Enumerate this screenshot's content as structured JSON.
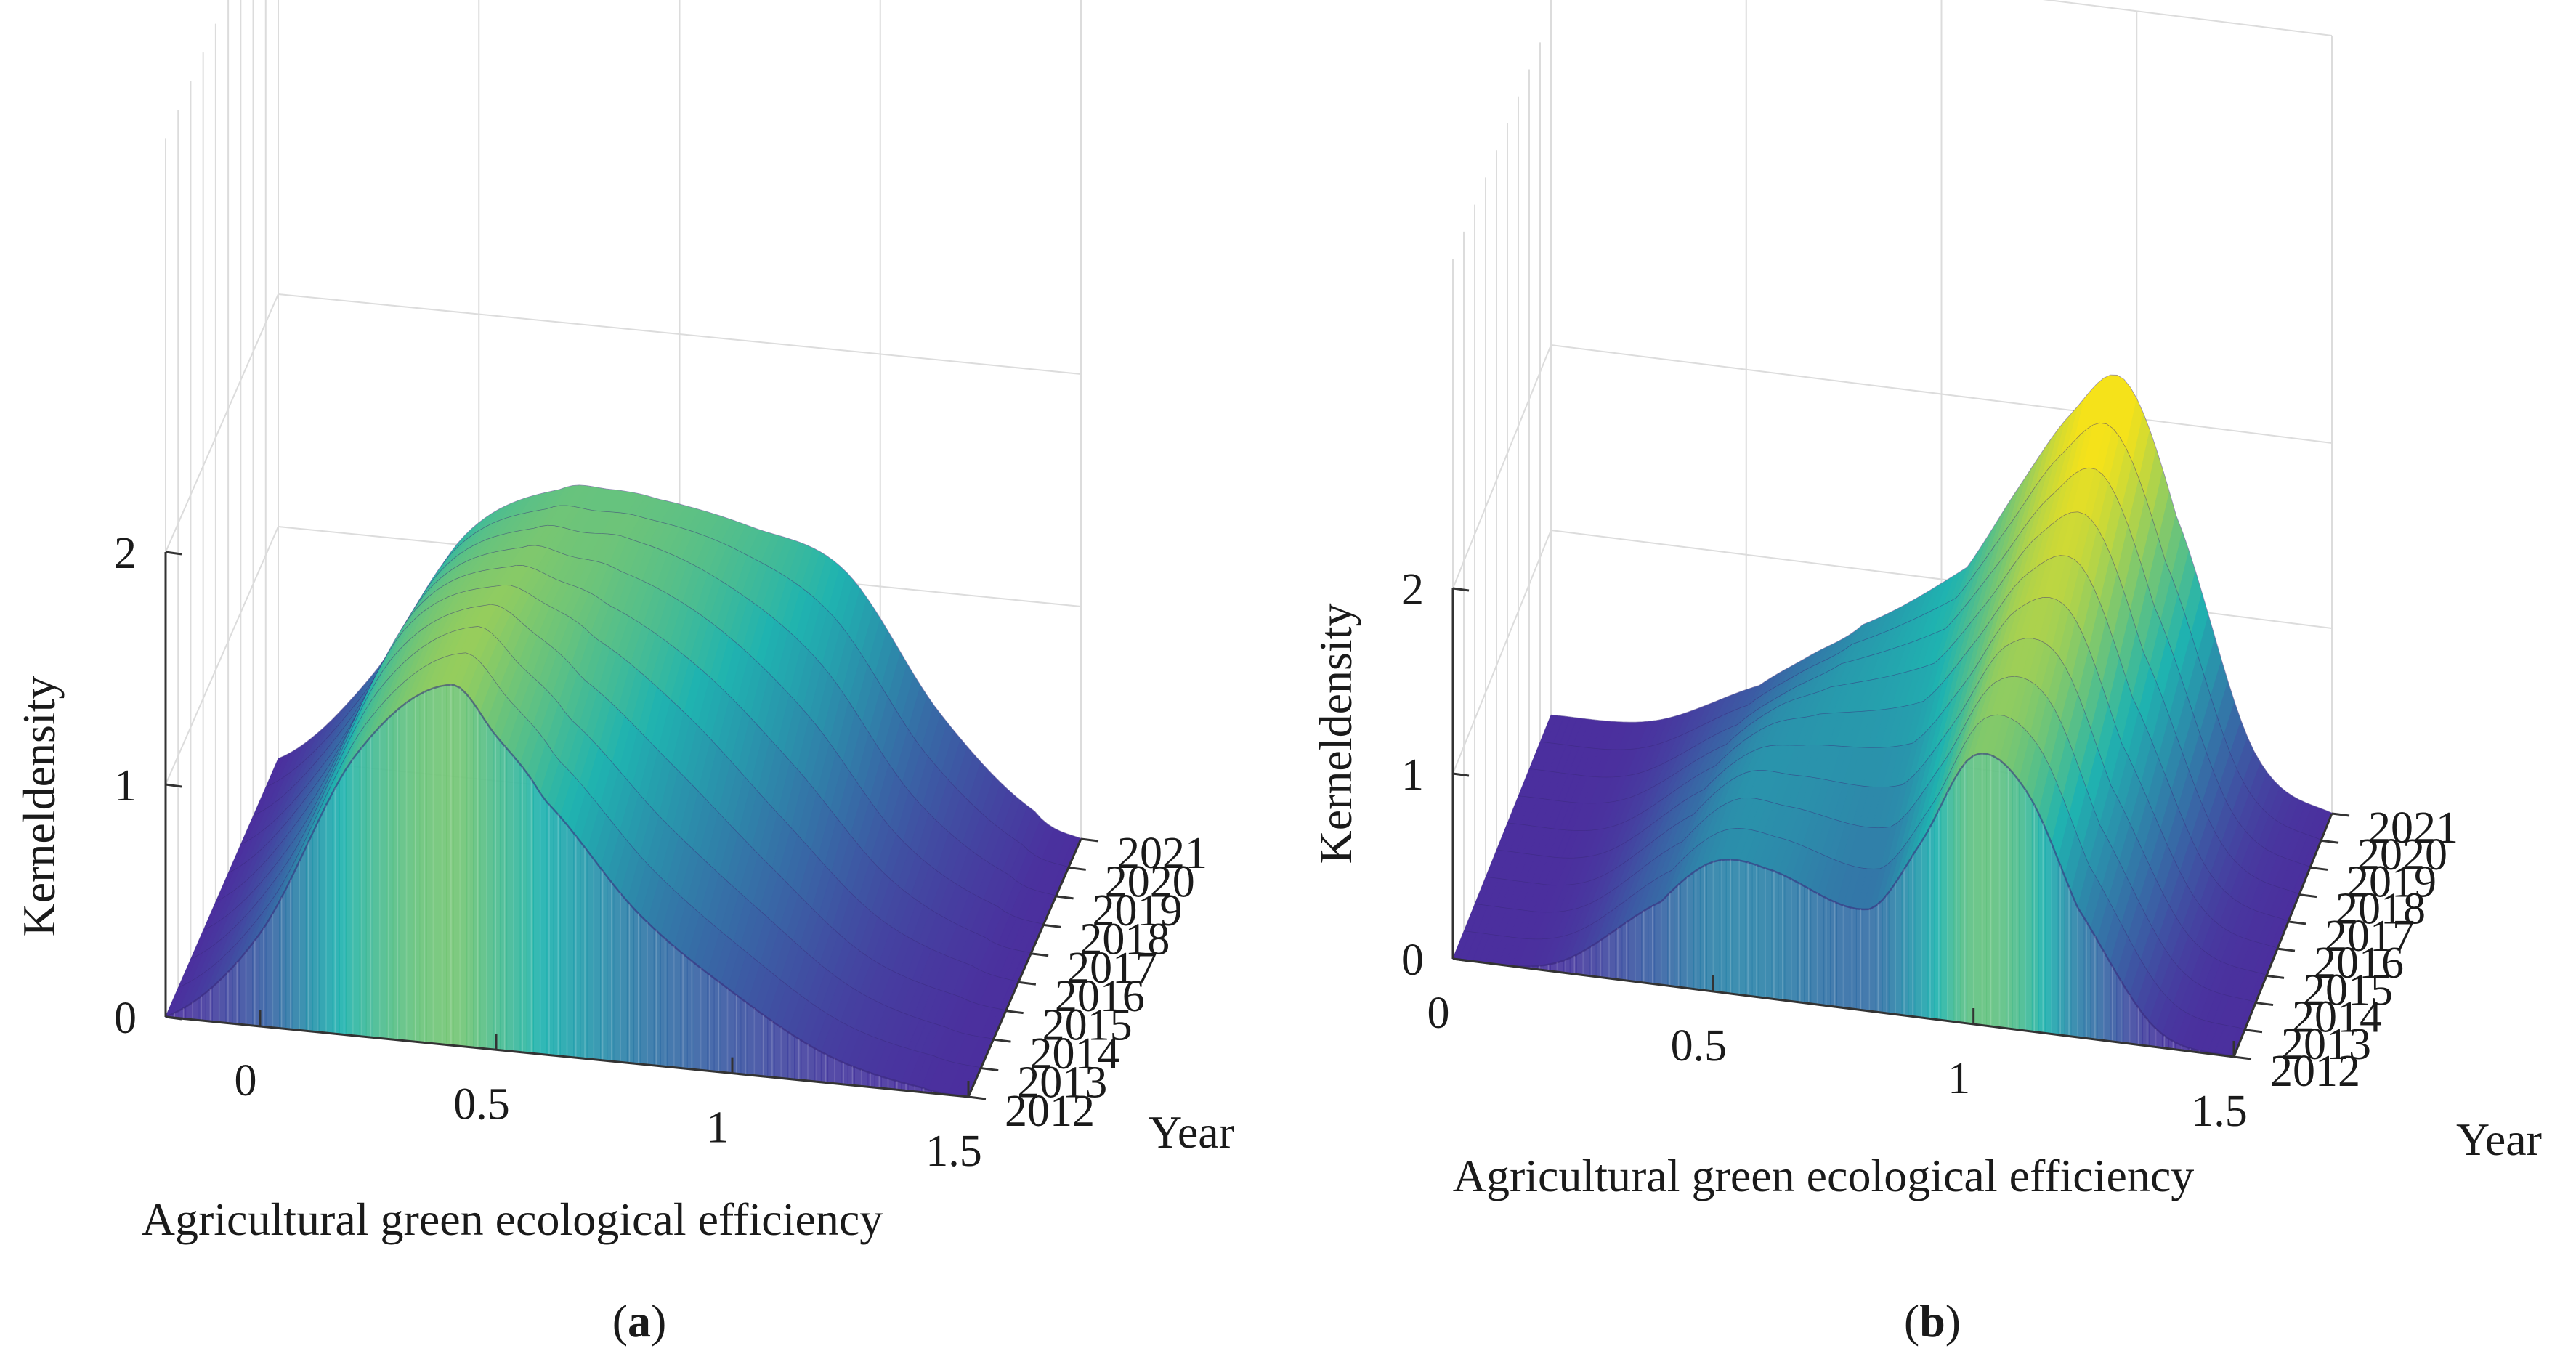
{
  "figure": {
    "panels": [
      {
        "id": "a",
        "tag_open": "(",
        "tag_letter": "a",
        "tag_close": ")"
      },
      {
        "id": "b",
        "tag_open": "(",
        "tag_letter": "b",
        "tag_close": ")"
      }
    ]
  },
  "colors": {
    "low": "#4b2f9e",
    "mid": "#1fb3b0",
    "high": "#f5e21a"
  },
  "chart_data": [
    {
      "type": "surface",
      "panel": "a",
      "title": "",
      "xlabel": "Agricultural green ecological efficiency",
      "ylabel": "Year",
      "zlabel": "Kerneldensity",
      "x_ticks": [
        "0",
        "0.5",
        "1",
        "1.5"
      ],
      "z_ticks": [
        "0",
        "1",
        "2"
      ],
      "years": [
        "2012",
        "2013",
        "2014",
        "2015",
        "2016",
        "2017",
        "2018",
        "2019",
        "2020",
        "2021"
      ],
      "xlim": [
        -0.2,
        1.5
      ],
      "zlim": [
        0,
        2
      ],
      "x": [
        -0.2,
        0.0,
        0.2,
        0.4,
        0.5,
        0.6,
        0.8,
        1.0,
        1.2,
        1.4,
        1.5
      ],
      "series": [
        {
          "name": "2012",
          "values": [
            0.0,
            0.4,
            1.2,
            1.55,
            1.35,
            1.1,
            0.65,
            0.35,
            0.12,
            0.02,
            0.0
          ]
        },
        {
          "name": "2013",
          "values": [
            0.0,
            0.42,
            1.22,
            1.56,
            1.38,
            1.15,
            0.72,
            0.4,
            0.14,
            0.03,
            0.0
          ]
        },
        {
          "name": "2014",
          "values": [
            0.0,
            0.44,
            1.24,
            1.55,
            1.4,
            1.2,
            0.8,
            0.46,
            0.16,
            0.03,
            0.0
          ]
        },
        {
          "name": "2015",
          "values": [
            0.0,
            0.45,
            1.25,
            1.52,
            1.42,
            1.25,
            0.9,
            0.52,
            0.18,
            0.04,
            0.0
          ]
        },
        {
          "name": "2016",
          "values": [
            0.0,
            0.46,
            1.25,
            1.48,
            1.42,
            1.3,
            1.0,
            0.6,
            0.22,
            0.05,
            0.0
          ]
        },
        {
          "name": "2017",
          "values": [
            0.0,
            0.46,
            1.22,
            1.44,
            1.4,
            1.32,
            1.08,
            0.7,
            0.26,
            0.05,
            0.0
          ]
        },
        {
          "name": "2018",
          "values": [
            0.0,
            0.45,
            1.18,
            1.4,
            1.38,
            1.34,
            1.15,
            0.8,
            0.3,
            0.06,
            0.0
          ]
        },
        {
          "name": "2019",
          "values": [
            0.0,
            0.44,
            1.14,
            1.36,
            1.36,
            1.35,
            1.2,
            0.9,
            0.36,
            0.07,
            0.0
          ]
        },
        {
          "name": "2020",
          "values": [
            0.0,
            0.42,
            1.1,
            1.32,
            1.33,
            1.32,
            1.22,
            0.98,
            0.42,
            0.08,
            0.0
          ]
        },
        {
          "name": "2021",
          "values": [
            0.0,
            0.4,
            1.05,
            1.28,
            1.3,
            1.28,
            1.2,
            1.05,
            0.48,
            0.1,
            0.0
          ]
        }
      ]
    },
    {
      "type": "surface",
      "panel": "b",
      "title": "",
      "xlabel": "Agricultural green ecological efficiency",
      "ylabel": "Year",
      "zlabel": "Kerneldensity",
      "x_ticks": [
        "0",
        "0.5",
        "1",
        "1.5"
      ],
      "z_ticks": [
        "0",
        "1",
        "2"
      ],
      "years": [
        "2012",
        "2013",
        "2014",
        "2015",
        "2016",
        "2017",
        "2018",
        "2019",
        "2020",
        "2021"
      ],
      "xlim": [
        0,
        1.5
      ],
      "zlim": [
        0,
        2
      ],
      "x": [
        0.0,
        0.2,
        0.4,
        0.5,
        0.6,
        0.8,
        0.9,
        1.0,
        1.1,
        1.2,
        1.35,
        1.5
      ],
      "series": [
        {
          "name": "2012",
          "values": [
            0.0,
            0.05,
            0.45,
            0.7,
            0.7,
            0.55,
            0.95,
            1.45,
            1.3,
            0.7,
            0.1,
            0.0
          ]
        },
        {
          "name": "2013",
          "values": [
            0.0,
            0.05,
            0.47,
            0.72,
            0.72,
            0.62,
            1.0,
            1.5,
            1.4,
            0.78,
            0.12,
            0.0
          ]
        },
        {
          "name": "2014",
          "values": [
            0.0,
            0.05,
            0.48,
            0.74,
            0.74,
            0.7,
            1.08,
            1.55,
            1.5,
            0.85,
            0.14,
            0.0
          ]
        },
        {
          "name": "2015",
          "values": [
            0.0,
            0.05,
            0.48,
            0.74,
            0.76,
            0.78,
            1.15,
            1.6,
            1.58,
            0.92,
            0.16,
            0.0
          ]
        },
        {
          "name": "2016",
          "values": [
            0.0,
            0.05,
            0.47,
            0.72,
            0.78,
            0.86,
            1.22,
            1.65,
            1.68,
            1.0,
            0.18,
            0.0
          ]
        },
        {
          "name": "2017",
          "values": [
            0.0,
            0.05,
            0.45,
            0.7,
            0.8,
            0.94,
            1.3,
            1.7,
            1.78,
            1.1,
            0.2,
            0.0
          ]
        },
        {
          "name": "2018",
          "values": [
            0.0,
            0.05,
            0.42,
            0.66,
            0.8,
            1.0,
            1.36,
            1.76,
            1.88,
            1.2,
            0.22,
            0.0
          ]
        },
        {
          "name": "2019",
          "values": [
            0.0,
            0.04,
            0.38,
            0.6,
            0.78,
            1.04,
            1.42,
            1.82,
            1.98,
            1.3,
            0.24,
            0.0
          ]
        },
        {
          "name": "2020",
          "values": [
            0.0,
            0.04,
            0.34,
            0.55,
            0.74,
            1.06,
            1.48,
            1.9,
            2.08,
            1.4,
            0.26,
            0.0
          ]
        },
        {
          "name": "2021",
          "values": [
            0.0,
            0.04,
            0.3,
            0.5,
            0.7,
            1.08,
            1.55,
            1.98,
            2.2,
            1.5,
            0.28,
            0.0
          ]
        }
      ]
    }
  ]
}
